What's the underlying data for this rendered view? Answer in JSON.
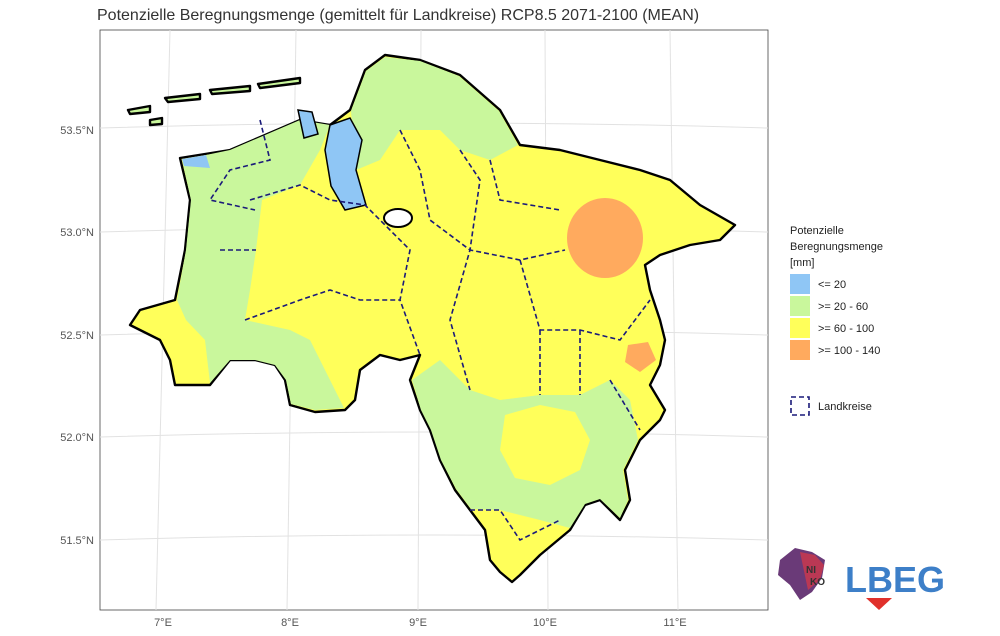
{
  "map": {
    "title": "Potenzielle Beregnungsmenge (gemittelt für Landkreise) RCP8.5 2071-2100 (MEAN)",
    "lat_labels": [
      "53.5°N",
      "53.0°N",
      "52.5°N",
      "52.0°N",
      "51.5°N"
    ],
    "lon_labels": [
      "7°E",
      "8°E",
      "9°E",
      "10°E",
      "11°E"
    ],
    "legend": {
      "title": [
        "Potenzielle",
        "Beregnungsmenge",
        "[mm]"
      ],
      "classes": [
        {
          "label": "<= 20",
          "color": "#8fc6f5"
        },
        {
          "label": ">= 20 - 60",
          "color": "#c9f79c"
        },
        {
          "label": ">= 60 - 100",
          "color": "#ffff5a"
        },
        {
          "label": ">= 100 - 140",
          "color": "#ffaa5e"
        }
      ],
      "boundary": "Landkreise"
    },
    "logos": {
      "niko": [
        "NI",
        "KO"
      ],
      "lbeg": "LBEG"
    }
  }
}
